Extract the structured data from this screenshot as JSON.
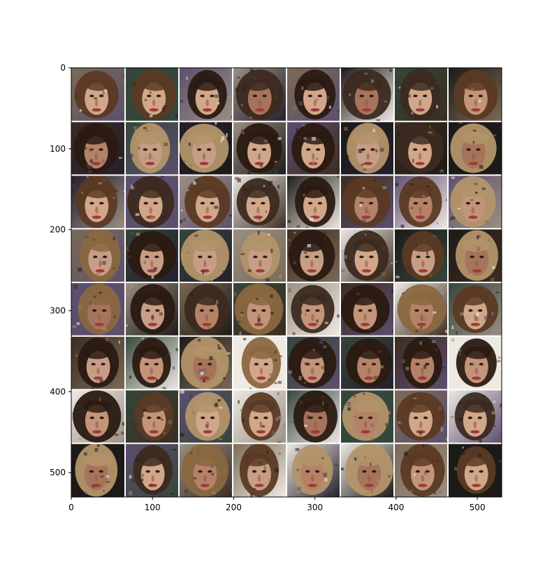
{
  "figure": {
    "kind": "image grid (imshow) of generated face samples",
    "grid": {
      "rows": 8,
      "cols": 8
    }
  },
  "axes": {
    "x_ticks": [
      "0",
      "100",
      "200",
      "300",
      "400",
      "500"
    ],
    "y_ticks": [
      "0",
      "100",
      "200",
      "300",
      "400",
      "500"
    ],
    "x_range": [
      0,
      530
    ],
    "y_range": [
      0,
      530
    ]
  },
  "colors": {
    "grid_line": "#ffffff",
    "frame": "#000000",
    "bg_palette": [
      "#1c1a17",
      "#efe9e4",
      "#3b2c21",
      "#7a6a55",
      "#5c4f6e",
      "#35463a",
      "#9a8f83",
      "#241f2d"
    ],
    "skin_palette": [
      "#c49478",
      "#b58167",
      "#d1a689",
      "#a6735b",
      "#c79d85"
    ],
    "hair_palette": [
      "#2a1a12",
      "#5b3a24",
      "#8a6740",
      "#b3946a",
      "#3c2a20"
    ]
  },
  "chart_data": {
    "type": "heatmap",
    "rows": 8,
    "cols": 8,
    "xlim": [
      0,
      530
    ],
    "ylim": [
      530,
      0
    ]
  }
}
